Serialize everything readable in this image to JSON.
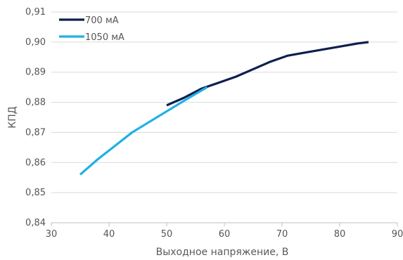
{
  "chart_data": {
    "type": "line",
    "xlabel": "Выходное напряжение, В",
    "ylabel": "КПД",
    "xlim": [
      30,
      90
    ],
    "ylim": [
      0.84,
      0.91
    ],
    "x_ticks": [
      "30",
      "40",
      "50",
      "60",
      "70",
      "80",
      "90"
    ],
    "y_ticks": [
      "0,84",
      "0,85",
      "0,86",
      "0,87",
      "0,88",
      "0,89",
      "0,90",
      "0,91"
    ],
    "grid": "horizontal",
    "legend_position": "top-left",
    "series": [
      {
        "name": "700 мА",
        "color": "#0f1f4e",
        "x": [
          50,
          53,
          56,
          59,
          62,
          65,
          68,
          71,
          74,
          77,
          80,
          83,
          85
        ],
        "y": [
          0.879,
          0.8815,
          0.8845,
          0.8865,
          0.8885,
          0.891,
          0.8935,
          0.8955,
          0.8965,
          0.8975,
          0.8985,
          0.8995,
          0.9
        ]
      },
      {
        "name": "1050 мА",
        "color": "#1fb0e4",
        "x": [
          35,
          38,
          41,
          44,
          47,
          50,
          53,
          57
        ],
        "y": [
          0.856,
          0.861,
          0.8655,
          0.87,
          0.8735,
          0.877,
          0.8805,
          0.885
        ]
      }
    ]
  }
}
